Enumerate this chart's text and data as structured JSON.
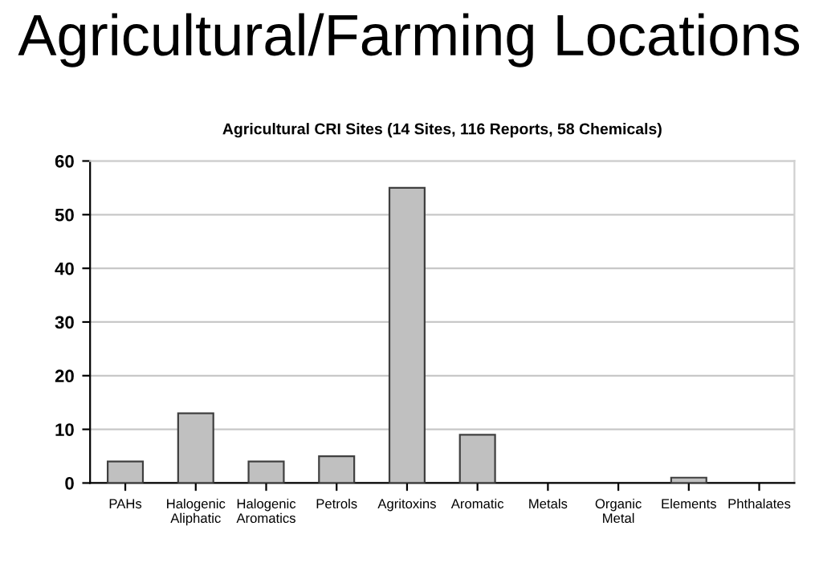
{
  "chart_data": {
    "type": "bar",
    "title": "Agricultural/Farming Locations",
    "subtitle": "Agricultural CRI Sites (14 Sites, 116 Reports, 58 Chemicals)",
    "categories": [
      "PAHs",
      "Halogenic\nAliphatic",
      "Halogenic\nAromatics",
      "Petrols",
      "Agritoxins",
      "Aromatic",
      "Metals",
      "Organic\nMetal",
      "Elements",
      "Phthalates"
    ],
    "values": [
      4,
      13,
      4,
      5,
      55,
      9,
      0,
      0,
      1,
      0
    ],
    "color": "#c0c0c0",
    "ylim": [
      0,
      60
    ],
    "yticks": [
      0,
      10,
      20,
      30,
      40,
      50,
      60
    ],
    "grid": "y",
    "legend": false
  }
}
